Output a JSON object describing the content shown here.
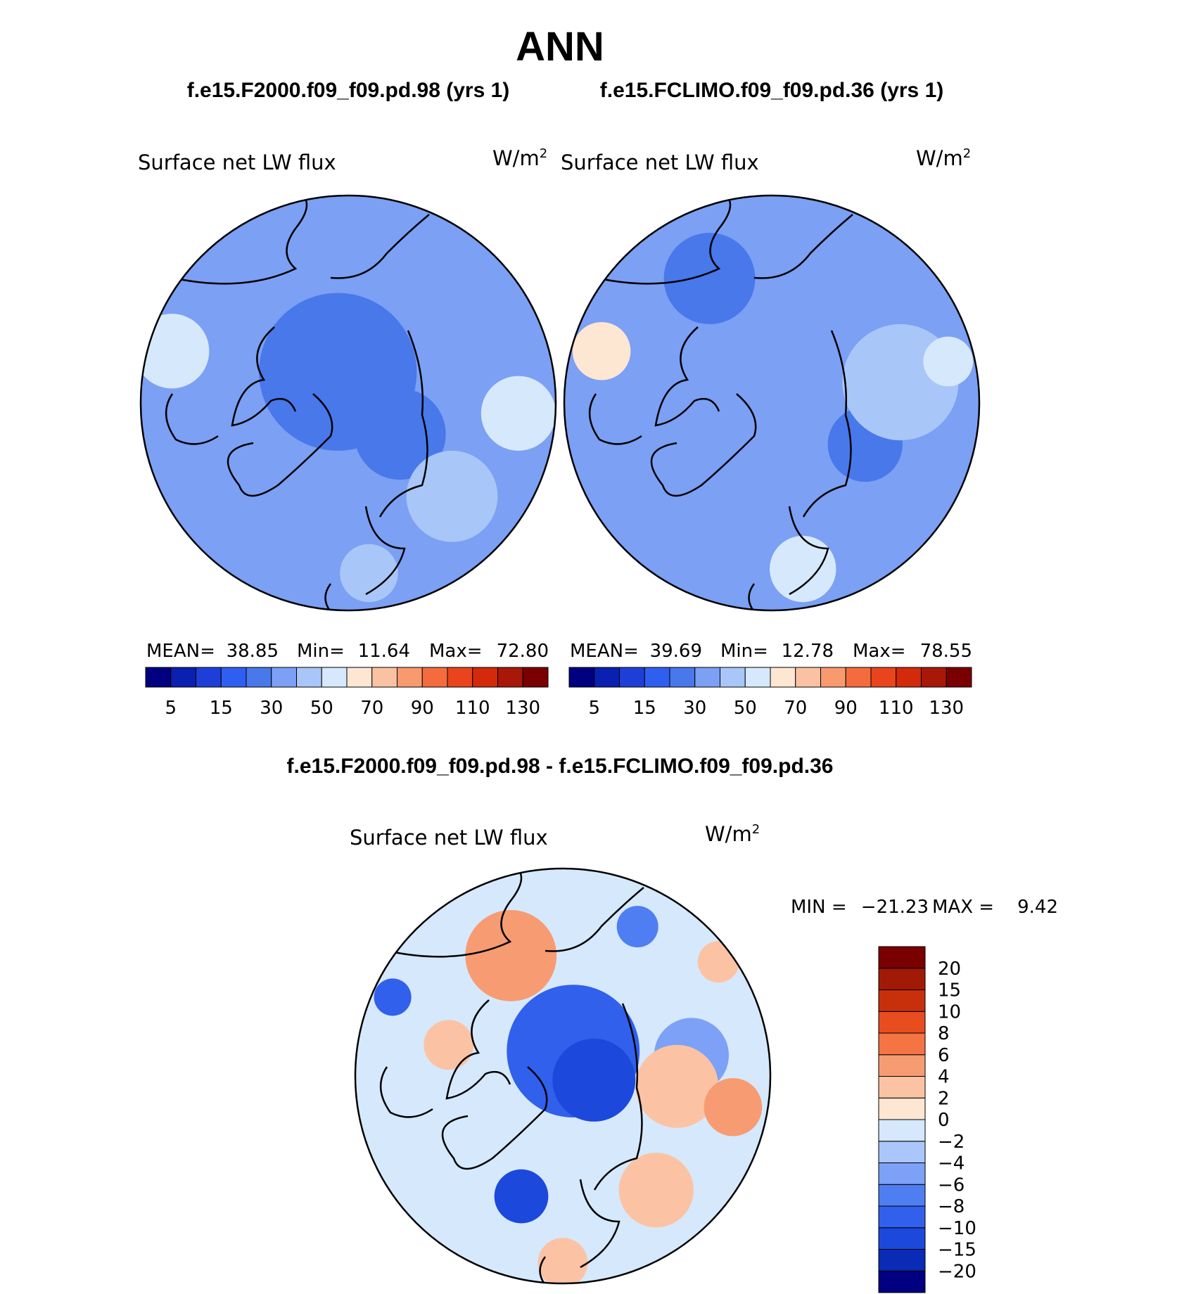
{
  "chart_data": {
    "type": "heatmap",
    "title": "ANN",
    "units_text": "W/m",
    "units_exp": "2",
    "panels": [
      {
        "title": "f.e15.F2000.f09_f09.pd.98 (yrs 1)",
        "variable": "Surface net LW flux",
        "stats": {
          "mean_label": "MEAN=",
          "mean": "38.85",
          "min_label": "Min=",
          "min": "11.64",
          "max_label": "Max=",
          "max": "72.80"
        },
        "blobs": [
          {
            "cx": -0.05,
            "cy": -0.15,
            "r": 0.38,
            "lvl": 4
          },
          {
            "cx": 0.25,
            "cy": 0.15,
            "r": 0.22,
            "lvl": 4
          },
          {
            "cx": -0.45,
            "cy": 0.35,
            "r": 0.25,
            "lvl": 5
          },
          {
            "cx": 0.5,
            "cy": 0.45,
            "r": 0.22,
            "lvl": 6
          },
          {
            "cx": 0.82,
            "cy": 0.05,
            "r": 0.18,
            "lvl": 7
          },
          {
            "cx": -0.85,
            "cy": -0.25,
            "r": 0.18,
            "lvl": 7
          },
          {
            "cx": 0.1,
            "cy": 0.82,
            "r": 0.14,
            "lvl": 6
          },
          {
            "cx": -0.75,
            "cy": 0.55,
            "r": 0.2,
            "lvl": 5
          }
        ]
      },
      {
        "title": "f.e15.FCLIMO.f09_f09.pd.36 (yrs 1)",
        "variable": "Surface net LW flux",
        "stats": {
          "mean_label": "MEAN=",
          "mean": "39.69",
          "min_label": "Min=",
          "min": "12.78",
          "max_label": "Max=",
          "max": "78.55"
        },
        "blobs": [
          {
            "cx": -0.3,
            "cy": -0.6,
            "r": 0.22,
            "lvl": 4
          },
          {
            "cx": 0.45,
            "cy": 0.2,
            "r": 0.18,
            "lvl": 4
          },
          {
            "cx": 0.0,
            "cy": -0.05,
            "r": 0.32,
            "lvl": 5
          },
          {
            "cx": 0.62,
            "cy": -0.1,
            "r": 0.28,
            "lvl": 6
          },
          {
            "cx": 0.15,
            "cy": 0.8,
            "r": 0.16,
            "lvl": 7
          },
          {
            "cx": -0.82,
            "cy": -0.25,
            "r": 0.14,
            "lvl": 8
          },
          {
            "cx": 0.85,
            "cy": -0.2,
            "r": 0.12,
            "lvl": 7
          }
        ]
      }
    ],
    "abs_colorbar": {
      "tick_labels": [
        "5",
        "15",
        "30",
        "50",
        "70",
        "90",
        "110",
        "130"
      ],
      "colors": [
        "#000080",
        "#0a20b0",
        "#1d3fd8",
        "#2f5ff0",
        "#4878ea",
        "#7ba0f4",
        "#a9c6f8",
        "#d6e8fc",
        "#fde6d2",
        "#fac2a2",
        "#f79a6e",
        "#f46c3e",
        "#e9441c",
        "#d22a0a",
        "#a81808",
        "#7a0000"
      ]
    },
    "diff_panel": {
      "title": "f.e15.F2000.f09_f09.pd.98 - f.e15.FCLIMO.f09_f09.pd.36",
      "variable": "Surface net LW flux",
      "min_label": "MIN =",
      "min": "−21.23",
      "max_label": "MAX =",
      "max": "9.42",
      "blobs": [
        {
          "cx": 0.05,
          "cy": -0.12,
          "r": 0.32,
          "lvl": 3
        },
        {
          "cx": 0.15,
          "cy": 0.02,
          "r": 0.2,
          "lvl": 2
        },
        {
          "cx": -0.2,
          "cy": 0.58,
          "r": 0.13,
          "lvl": 2
        },
        {
          "cx": -0.82,
          "cy": -0.38,
          "r": 0.09,
          "lvl": 3
        },
        {
          "cx": 0.36,
          "cy": -0.72,
          "r": 0.1,
          "lvl": 4
        },
        {
          "cx": 0.62,
          "cy": -0.1,
          "r": 0.18,
          "lvl": 5
        },
        {
          "cx": -0.25,
          "cy": -0.58,
          "r": 0.22,
          "lvl": 10
        },
        {
          "cx": 0.55,
          "cy": 0.05,
          "r": 0.2,
          "lvl": 9
        },
        {
          "cx": 0.82,
          "cy": 0.15,
          "r": 0.14,
          "lvl": 10
        },
        {
          "cx": 0.45,
          "cy": 0.55,
          "r": 0.18,
          "lvl": 9
        },
        {
          "cx": -0.55,
          "cy": -0.15,
          "r": 0.12,
          "lvl": 9
        },
        {
          "cx": 0.0,
          "cy": 0.9,
          "r": 0.12,
          "lvl": 9
        },
        {
          "cx": 0.75,
          "cy": -0.55,
          "r": 0.1,
          "lvl": 9
        }
      ]
    },
    "diff_colorbar": {
      "tick_labels": [
        "20",
        "15",
        "10",
        "8",
        "6",
        "4",
        "2",
        "0",
        "−2",
        "−4",
        "−6",
        "−8",
        "−10",
        "−15",
        "−20"
      ],
      "colors": [
        "#000080",
        "#0a2bb5",
        "#1c48dc",
        "#3160ec",
        "#4f7ef2",
        "#7da1f6",
        "#abc6fa",
        "#d6e8fc",
        "#fde6d2",
        "#fbc3a3",
        "#f79c72",
        "#f47444",
        "#e84d1f",
        "#c8300c",
        "#a01a06",
        "#7a0000"
      ]
    }
  }
}
